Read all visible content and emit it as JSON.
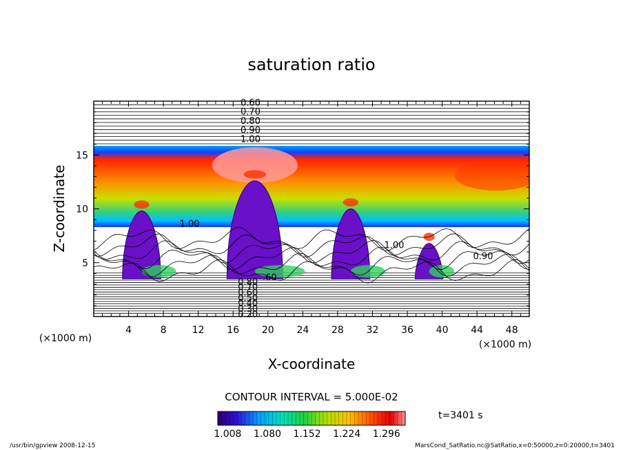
{
  "chart_data": {
    "type": "contour",
    "title": "saturation ratio",
    "xlabel": "X-coordinate",
    "ylabel": "Z-coordinate",
    "x_unit": "(×1000 m)",
    "z_unit": "(×1000 m)",
    "xlim": [
      0,
      50
    ],
    "ylim": [
      0,
      20
    ],
    "x_ticks": [
      "4",
      "8",
      "12",
      "16",
      "20",
      "24",
      "28",
      "32",
      "36",
      "40",
      "44",
      "48"
    ],
    "y_ticks": [
      "5",
      "10",
      "15"
    ],
    "contour_labels_top": [
      "0.60",
      "0.70",
      "0.80",
      "0.90",
      "1.00"
    ],
    "contour_labels_bottom": [
      "0.80",
      "0.70",
      "0.60",
      "0.50",
      "0.40",
      "0.30",
      "0.20"
    ],
    "contour_labels_inline": [
      "1.00",
      "1.00",
      "0.90",
      ".60"
    ],
    "contour_interval": "CONTOUR INTERVAL = 5.000E-02",
    "colorbar": {
      "tick_labels": [
        "1.008",
        "1.080",
        "1.152",
        "1.224",
        "1.296"
      ],
      "range": [
        0.99,
        1.33
      ],
      "colors": [
        "#2a0070",
        "#5a00c0",
        "#1a30ff",
        "#00a0ff",
        "#00e0d0",
        "#00d060",
        "#80e000",
        "#e0e000",
        "#ffb000",
        "#ff5000",
        "#e00000",
        "#ff8080"
      ]
    },
    "time_label": "t=3401 s",
    "footer_left": "/usr/bin/gpview   2008-12-15",
    "footer_right": "MarsCond_SatRatio.nc@SatRatio,x=0:50000,z=0:20000,t=3401",
    "cloud_towers_x": [
      5.5,
      18.5,
      29.5,
      38.5
    ],
    "grid": false
  }
}
